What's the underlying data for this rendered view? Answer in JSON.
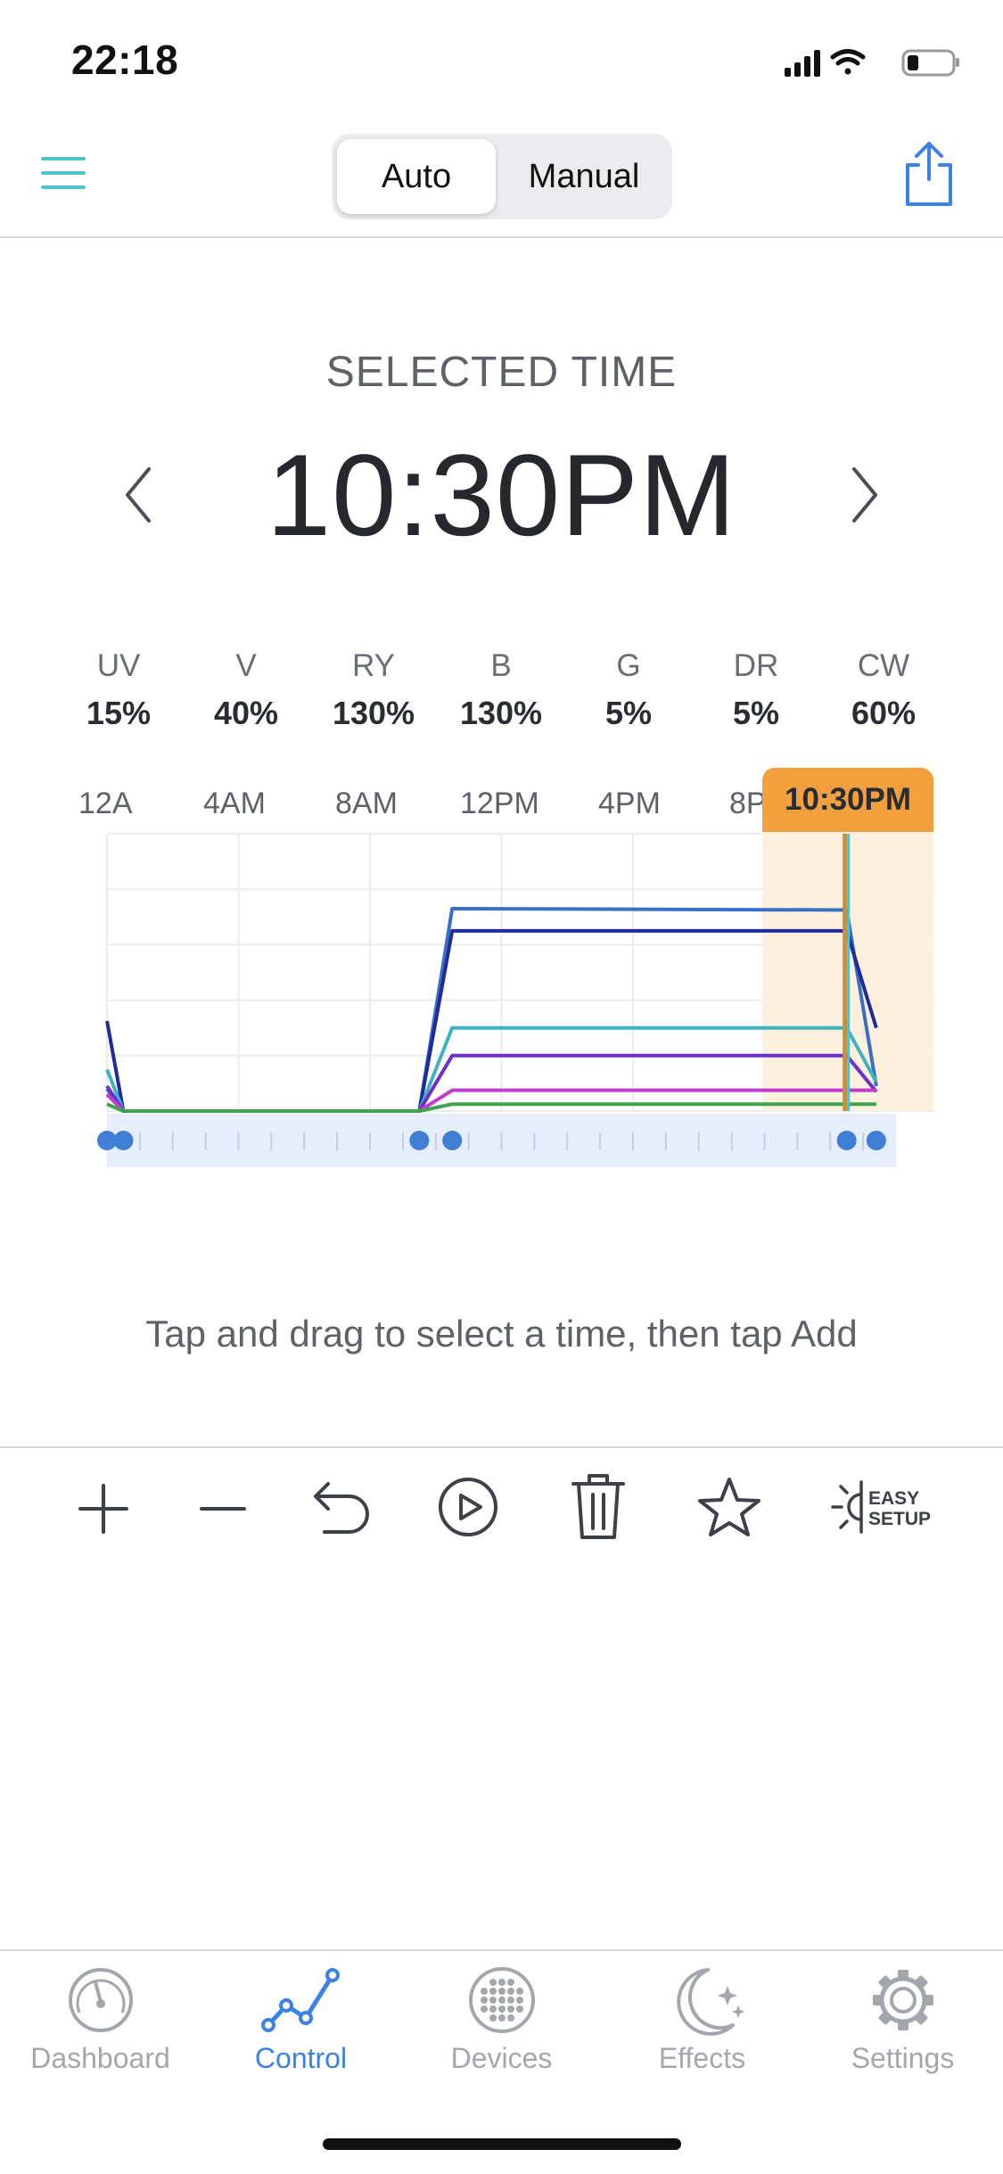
{
  "status_bar": {
    "time": "22:18"
  },
  "header": {
    "menu_icon": "hamburger-menu-icon",
    "segments": [
      {
        "label": "Auto",
        "selected": true
      },
      {
        "label": "Manual",
        "selected": false
      }
    ],
    "share_icon": "share-icon"
  },
  "selected_time": {
    "label": "SELECTED TIME",
    "time": "10:30PM"
  },
  "channels": [
    {
      "name": "UV",
      "value": "15%"
    },
    {
      "name": "V",
      "value": "40%"
    },
    {
      "name": "RY",
      "value": "130%"
    },
    {
      "name": "B",
      "value": "130%"
    },
    {
      "name": "G",
      "value": "5%"
    },
    {
      "name": "DR",
      "value": "5%"
    },
    {
      "name": "CW",
      "value": "60%"
    }
  ],
  "timeline": {
    "hour_labels": [
      "12A",
      "4AM",
      "8AM",
      "12PM",
      "4PM",
      "8P"
    ],
    "badge": "10:30PM"
  },
  "chart_data": {
    "type": "line",
    "x_unit": "hour",
    "xlim": [
      0,
      24
    ],
    "ylim": [
      0,
      200
    ],
    "series": [
      {
        "color": "#3a6fc4",
        "points": [
          [
            0,
            16
          ],
          [
            0.5,
            0
          ],
          [
            9.5,
            0
          ],
          [
            10.5,
            146
          ],
          [
            22.5,
            145
          ],
          [
            23.4,
            18
          ]
        ]
      },
      {
        "color": "#1f2a9c",
        "points": [
          [
            0,
            65
          ],
          [
            0.5,
            0
          ],
          [
            9.5,
            0
          ],
          [
            10.5,
            130
          ],
          [
            22.5,
            130
          ],
          [
            23.4,
            60
          ]
        ]
      },
      {
        "color": "#3fb2c2",
        "points": [
          [
            0,
            30
          ],
          [
            0.5,
            0
          ],
          [
            9.5,
            0
          ],
          [
            10.5,
            60
          ],
          [
            22.5,
            60
          ],
          [
            23.4,
            21
          ]
        ]
      },
      {
        "color": "#6d2fc9",
        "points": [
          [
            0,
            18
          ],
          [
            0.5,
            0
          ],
          [
            9.5,
            0
          ],
          [
            10.5,
            40
          ],
          [
            22.5,
            40
          ],
          [
            23.4,
            14
          ]
        ]
      },
      {
        "color": "#c23ad0",
        "points": [
          [
            0,
            12
          ],
          [
            0.5,
            0
          ],
          [
            9.5,
            0
          ],
          [
            10.5,
            15
          ],
          [
            22.5,
            15
          ],
          [
            23.4,
            15
          ]
        ]
      },
      {
        "color": "#3fa34d",
        "points": [
          [
            0,
            5
          ],
          [
            0.5,
            0
          ],
          [
            9.5,
            0
          ],
          [
            10.5,
            5
          ],
          [
            22.5,
            5
          ],
          [
            23.4,
            5
          ]
        ]
      }
    ],
    "selected_hour": 22.5,
    "keyframe_hours": [
      0,
      0.5,
      9.5,
      10.5,
      22.5,
      23.4
    ]
  },
  "hint": "Tap and drag to select a time, then tap Add",
  "toolbar": {
    "easy_setup_line1": "EASY",
    "easy_setup_line2": "SETUP"
  },
  "tabs": [
    {
      "label": "Dashboard",
      "icon": "gauge-icon",
      "active": false
    },
    {
      "label": "Control",
      "icon": "line-graph-icon",
      "active": true
    },
    {
      "label": "Devices",
      "icon": "devices-grid-icon",
      "active": false
    },
    {
      "label": "Effects",
      "icon": "moon-stars-icon",
      "active": false
    },
    {
      "label": "Settings",
      "icon": "gear-icon",
      "active": false
    }
  ],
  "colors": {
    "accent": "#3b82e6",
    "teal": "#4ec3c9",
    "highlight": "#f2a03d"
  }
}
